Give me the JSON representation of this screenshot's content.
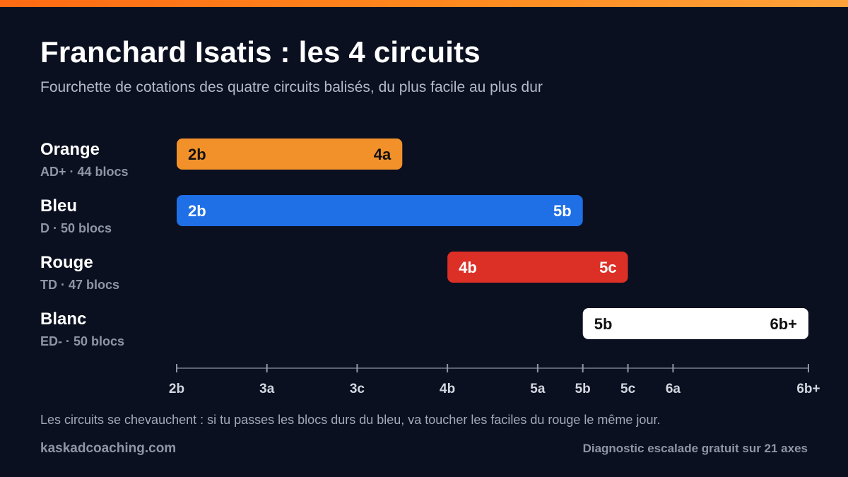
{
  "header": {
    "title": "Franchard Isatis : les 4 circuits",
    "subtitle": "Fourchette de cotations des quatre circuits balisés, du plus facile au plus dur"
  },
  "colors": {
    "accent": "#ff7a1a",
    "background": "#0b1020"
  },
  "chart_data": {
    "type": "bar",
    "orientation": "horizontal-range",
    "title": "Franchard Isatis : les 4 circuits",
    "subtitle": "Fourchette de cotations des quatre circuits balisés, du plus facile au plus dur",
    "x_ticks": [
      {
        "label": "2b",
        "value": 0
      },
      {
        "label": "3a",
        "value": 2
      },
      {
        "label": "3c",
        "value": 4
      },
      {
        "label": "4b",
        "value": 6
      },
      {
        "label": "5a",
        "value": 8
      },
      {
        "label": "5b",
        "value": 9
      },
      {
        "label": "5c",
        "value": 10
      },
      {
        "label": "6a",
        "value": 11
      },
      {
        "label": "6b+",
        "value": 14
      }
    ],
    "xlim": [
      0,
      14
    ],
    "series": [
      {
        "name": "Orange",
        "meta": "AD+ · 44 blocs",
        "from": "2b",
        "to": "4a",
        "from_value": 0,
        "to_value": 5,
        "color": "#f2912a",
        "text_color": "#111111"
      },
      {
        "name": "Bleu",
        "meta": "D · 50 blocs",
        "from": "2b",
        "to": "5b",
        "from_value": 0,
        "to_value": 9,
        "color": "#1f6fe6",
        "text_color": "#ffffff"
      },
      {
        "name": "Rouge",
        "meta": "TD · 47 blocs",
        "from": "4b",
        "to": "5c",
        "from_value": 6,
        "to_value": 10,
        "color": "#dc2f26",
        "text_color": "#ffffff"
      },
      {
        "name": "Blanc",
        "meta": "ED- · 50 blocs",
        "from": "5b",
        "to": "6b+",
        "from_value": 9,
        "to_value": 14,
        "color": "#ffffff",
        "text_color": "#111111"
      }
    ]
  },
  "footer": {
    "note": "Les circuits se chevauchent : si tu passes les blocs durs du bleu, va toucher les faciles du rouge le même jour.",
    "site": "kaskadcoaching.com",
    "cta": "Diagnostic escalade gratuit sur 21 axes"
  }
}
